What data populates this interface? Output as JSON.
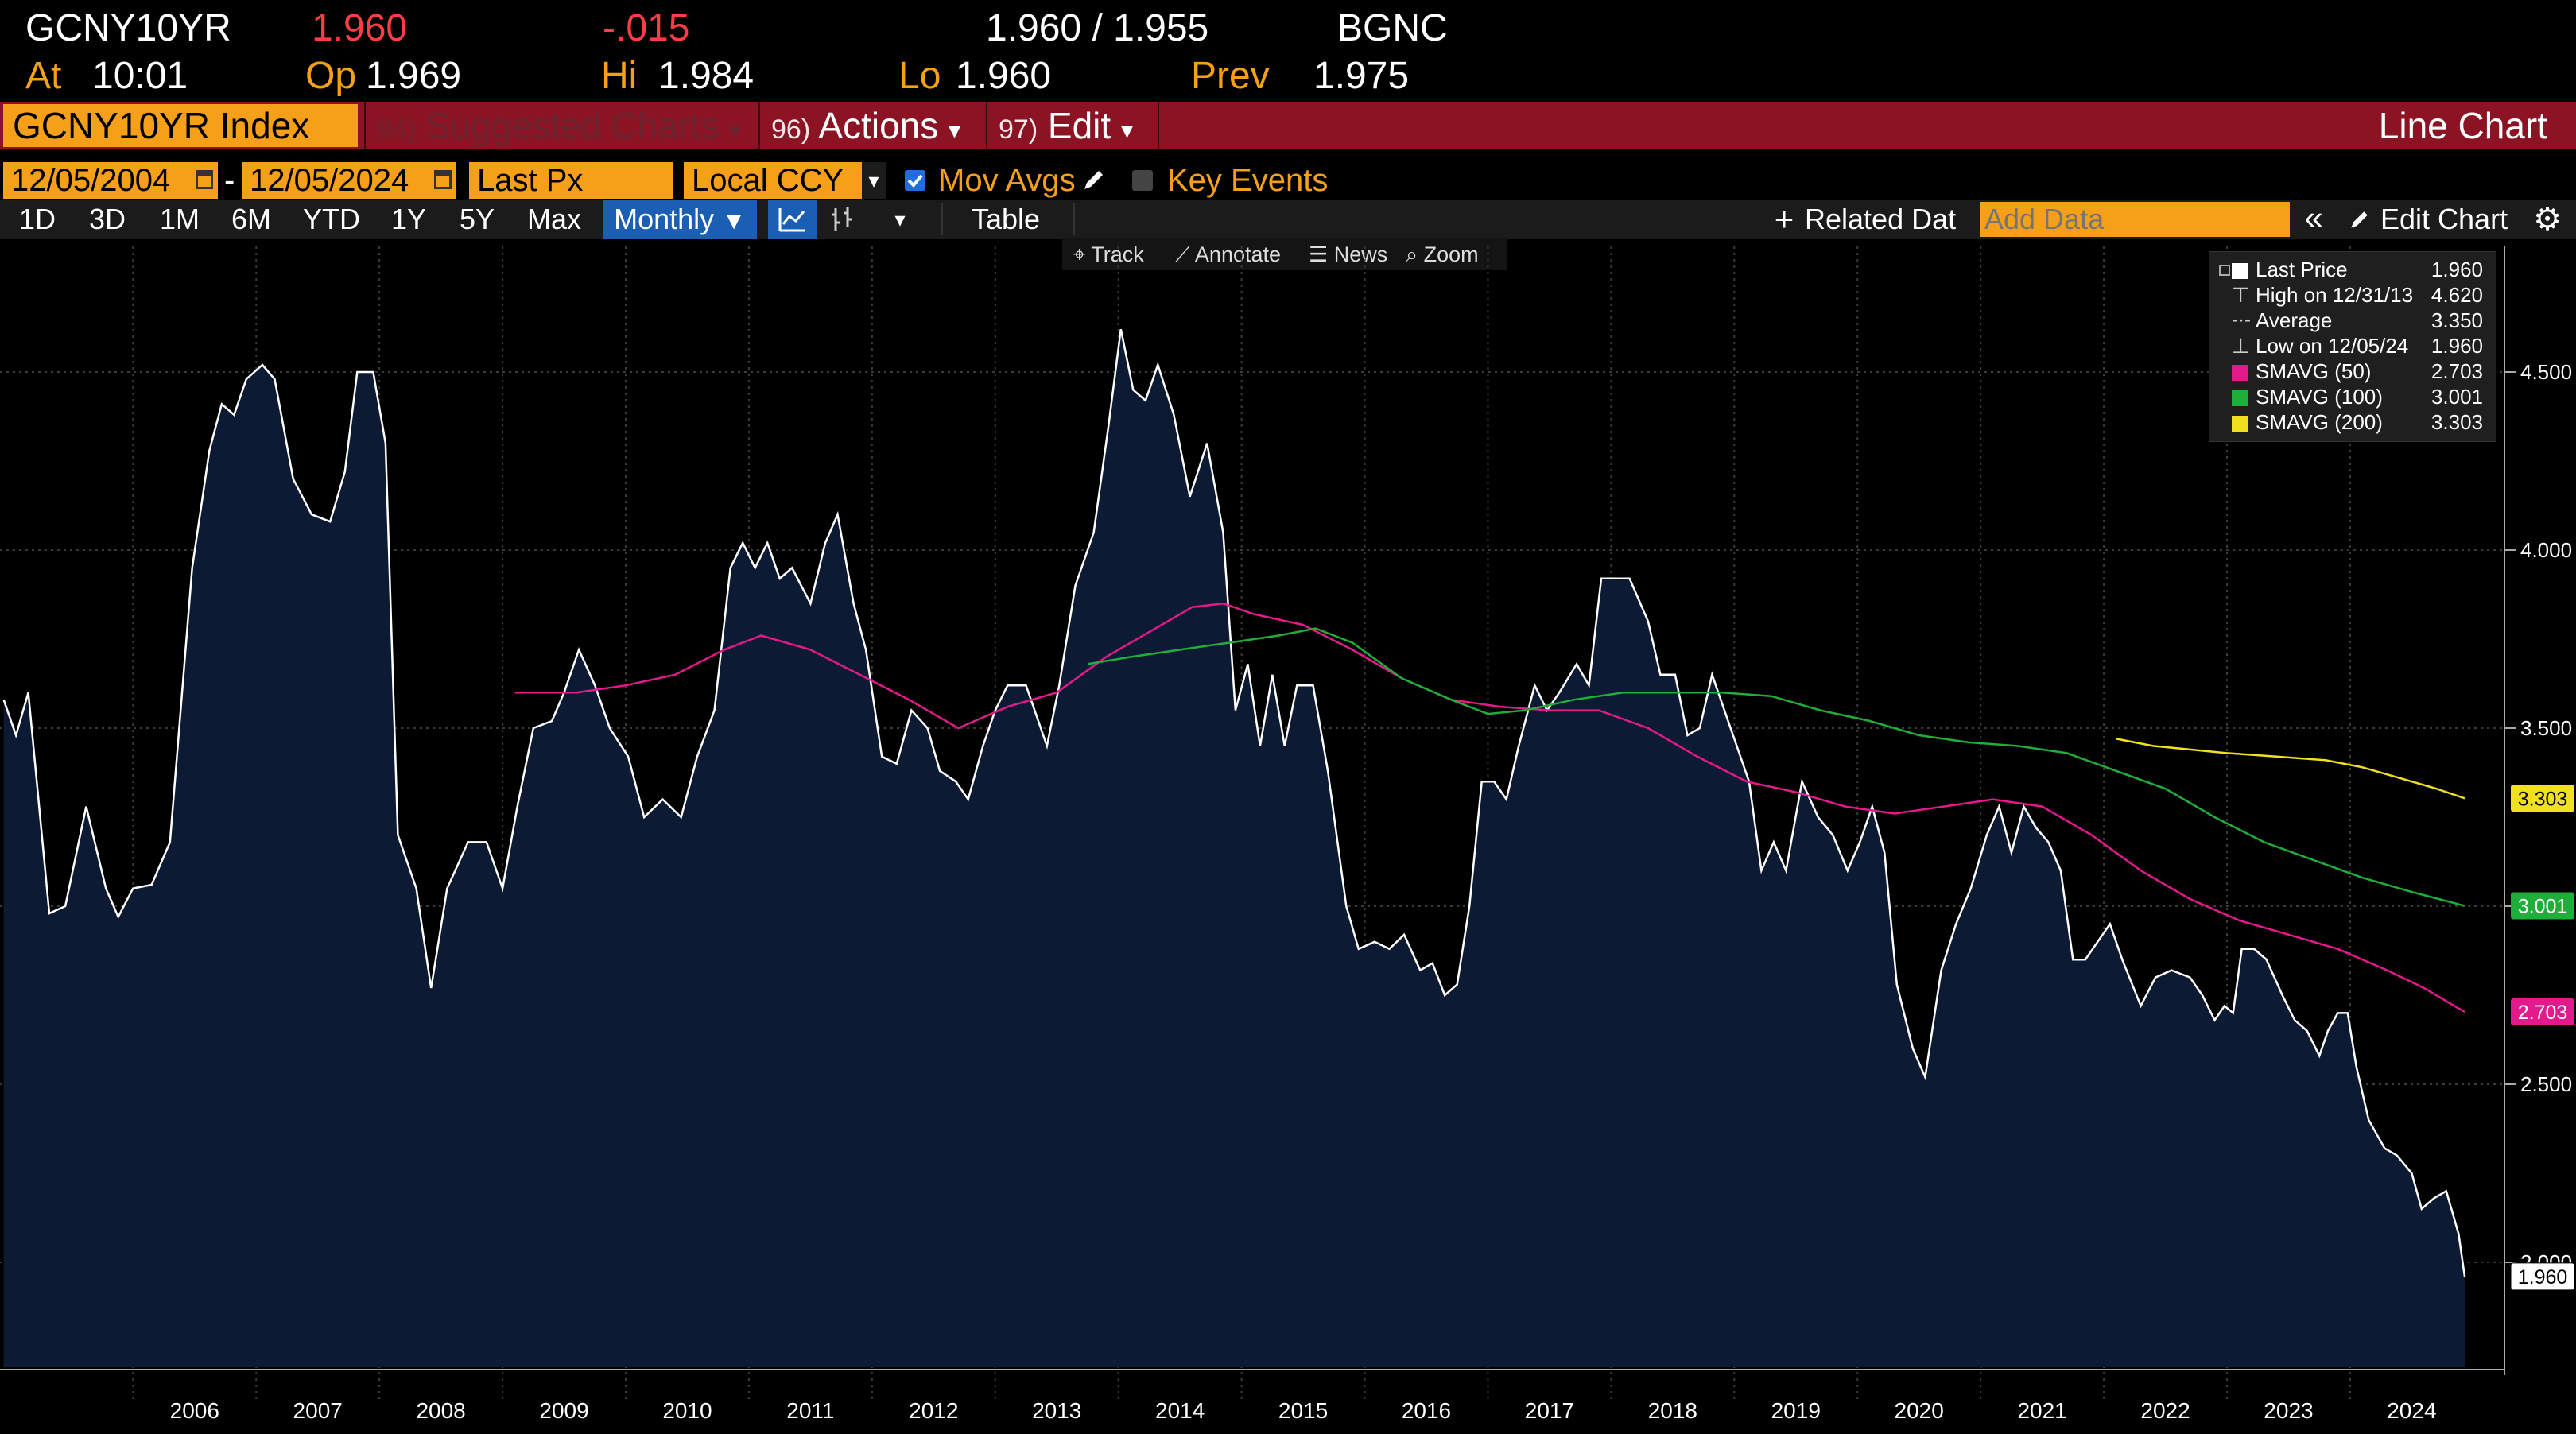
{
  "header": {
    "ticker": "GCNY10YR",
    "last": "1.960",
    "change": "-.015",
    "bid_ask": "1.960 / 1.955",
    "source": "BGNC",
    "at_label": "At",
    "at_time": "10:01",
    "open_label": "Op",
    "open_value": "1.969",
    "high_label": "Hi",
    "high_value": "1.984",
    "low_label": "Lo",
    "low_value": "1.960",
    "prev_label": "Prev",
    "prev_value": "1.975"
  },
  "menubar": {
    "security": "GCNY10YR Index",
    "suggested_num": "94)",
    "suggested_label": "Suggested Charts",
    "actions_num": "96)",
    "actions_label": "Actions",
    "edit_num": "97)",
    "edit_label": "Edit",
    "chart_type": "Line Chart",
    "dropdown_glyph": "▾"
  },
  "controls": {
    "start_date": "12/05/2004",
    "end_date": "12/05/2024",
    "date_dash": "-",
    "field": "Last Px",
    "currency": "Local CCY",
    "mov_avgs_label": "Mov Avgs",
    "mov_avgs_checked": true,
    "key_events_label": "Key Events",
    "key_events_checked": false
  },
  "toolbar": {
    "periods": [
      "1D",
      "3D",
      "1M",
      "6M",
      "YTD",
      "1Y",
      "5Y",
      "Max"
    ],
    "frequency": "Monthly",
    "table_label": "Table",
    "related_label": "Related Dat",
    "add_data_placeholder": "Add Data",
    "edit_chart_label": "Edit Chart"
  },
  "subtoolbar": {
    "track": "Track",
    "annotate": "Annotate",
    "news": "News",
    "zoom": "Zoom"
  },
  "legend": {
    "rows": [
      {
        "label": "Last Price",
        "value": "1.960",
        "color": "#ffffff"
      },
      {
        "label": "High on 12/31/13",
        "value": "4.620",
        "color": ""
      },
      {
        "label": "Average",
        "value": "3.350",
        "color": ""
      },
      {
        "label": "Low on 12/05/24",
        "value": "1.960",
        "color": ""
      },
      {
        "label": "SMAVG (50)",
        "value": "2.703",
        "color": "#e6198c"
      },
      {
        "label": "SMAVG (100)",
        "value": "3.001",
        "color": "#1fae3a"
      },
      {
        "label": "SMAVG (200)",
        "value": "3.303",
        "color": "#f0e020"
      }
    ]
  },
  "colors": {
    "amber": "#f6a01a",
    "menubar": "#8b1324",
    "area_fill": "#0d1a33",
    "sma50": "#e6198c",
    "sma100": "#1fae3a",
    "sma200": "#f0e020"
  },
  "chart_data": {
    "type": "area",
    "title": "",
    "xlabel": "",
    "ylabel": "",
    "ylim": [
      1.7,
      4.7
    ],
    "yticks": [
      "2.000",
      "2.500",
      "3.000",
      "3.500",
      "4.000",
      "4.500"
    ],
    "xlim": [
      2004.92,
      2024.93
    ],
    "year_labels": [
      "2006",
      "2007",
      "2008",
      "2009",
      "2010",
      "2011",
      "2012",
      "2013",
      "2014",
      "2015",
      "2016",
      "2017",
      "2018",
      "2019",
      "2020",
      "2021",
      "2022",
      "2023",
      "2024"
    ],
    "grid": true,
    "last_flags": [
      {
        "label": "3.303",
        "value": 3.303,
        "series": "SMAVG (200)"
      },
      {
        "label": "3.001",
        "value": 3.001,
        "series": "SMAVG (100)"
      },
      {
        "label": "2.703",
        "value": 2.703,
        "series": "SMAVG (50)"
      },
      {
        "label": "1.960",
        "value": 1.96,
        "series": "Last Price"
      }
    ],
    "series": [
      {
        "name": "Last Price",
        "style": "area",
        "points": [
          [
            2004.95,
            3.58
          ],
          [
            2005.05,
            3.48
          ],
          [
            2005.15,
            3.6
          ],
          [
            2005.32,
            2.98
          ],
          [
            2005.45,
            3.0
          ],
          [
            2005.62,
            3.28
          ],
          [
            2005.78,
            3.05
          ],
          [
            2005.88,
            2.97
          ],
          [
            2006.0,
            3.05
          ],
          [
            2006.15,
            3.06
          ],
          [
            2006.3,
            3.18
          ],
          [
            2006.48,
            3.95
          ],
          [
            2006.62,
            4.28
          ],
          [
            2006.72,
            4.41
          ],
          [
            2006.82,
            4.38
          ],
          [
            2006.92,
            4.48
          ],
          [
            2007.05,
            4.52
          ],
          [
            2007.15,
            4.48
          ],
          [
            2007.3,
            4.2
          ],
          [
            2007.45,
            4.1
          ],
          [
            2007.6,
            4.08
          ],
          [
            2007.72,
            4.22
          ],
          [
            2007.82,
            4.5
          ],
          [
            2007.95,
            4.5
          ],
          [
            2008.05,
            4.3
          ],
          [
            2008.15,
            3.2
          ],
          [
            2008.3,
            3.05
          ],
          [
            2008.42,
            2.77
          ],
          [
            2008.55,
            3.05
          ],
          [
            2008.72,
            3.18
          ],
          [
            2008.87,
            3.18
          ],
          [
            2009.0,
            3.05
          ],
          [
            2009.12,
            3.28
          ],
          [
            2009.25,
            3.5
          ],
          [
            2009.4,
            3.52
          ],
          [
            2009.5,
            3.6
          ],
          [
            2009.62,
            3.72
          ],
          [
            2009.75,
            3.62
          ],
          [
            2009.87,
            3.5
          ],
          [
            2010.02,
            3.42
          ],
          [
            2010.15,
            3.25
          ],
          [
            2010.3,
            3.3
          ],
          [
            2010.45,
            3.25
          ],
          [
            2010.58,
            3.42
          ],
          [
            2010.72,
            3.55
          ],
          [
            2010.85,
            3.95
          ],
          [
            2010.95,
            4.02
          ],
          [
            2011.05,
            3.95
          ],
          [
            2011.15,
            4.02
          ],
          [
            2011.25,
            3.92
          ],
          [
            2011.35,
            3.95
          ],
          [
            2011.5,
            3.85
          ],
          [
            2011.62,
            4.02
          ],
          [
            2011.72,
            4.1
          ],
          [
            2011.85,
            3.85
          ],
          [
            2011.95,
            3.72
          ],
          [
            2012.08,
            3.42
          ],
          [
            2012.2,
            3.4
          ],
          [
            2012.32,
            3.55
          ],
          [
            2012.45,
            3.5
          ],
          [
            2012.55,
            3.38
          ],
          [
            2012.68,
            3.35
          ],
          [
            2012.78,
            3.3
          ],
          [
            2012.9,
            3.45
          ],
          [
            2013.0,
            3.55
          ],
          [
            2013.1,
            3.62
          ],
          [
            2013.25,
            3.62
          ],
          [
            2013.42,
            3.45
          ],
          [
            2013.52,
            3.62
          ],
          [
            2013.65,
            3.9
          ],
          [
            2013.8,
            4.05
          ],
          [
            2013.92,
            4.35
          ],
          [
            2014.02,
            4.62
          ],
          [
            2014.12,
            4.45
          ],
          [
            2014.22,
            4.42
          ],
          [
            2014.32,
            4.52
          ],
          [
            2014.45,
            4.38
          ],
          [
            2014.58,
            4.15
          ],
          [
            2014.72,
            4.3
          ],
          [
            2014.85,
            4.05
          ],
          [
            2014.95,
            3.55
          ],
          [
            2015.05,
            3.68
          ],
          [
            2015.15,
            3.45
          ],
          [
            2015.25,
            3.65
          ],
          [
            2015.35,
            3.45
          ],
          [
            2015.45,
            3.62
          ],
          [
            2015.58,
            3.62
          ],
          [
            2015.7,
            3.38
          ],
          [
            2015.85,
            3.0
          ],
          [
            2015.95,
            2.88
          ],
          [
            2016.08,
            2.9
          ],
          [
            2016.2,
            2.88
          ],
          [
            2016.32,
            2.92
          ],
          [
            2016.45,
            2.82
          ],
          [
            2016.55,
            2.84
          ],
          [
            2016.65,
            2.75
          ],
          [
            2016.75,
            2.78
          ],
          [
            2016.85,
            3.0
          ],
          [
            2016.95,
            3.35
          ],
          [
            2017.05,
            3.35
          ],
          [
            2017.15,
            3.3
          ],
          [
            2017.25,
            3.45
          ],
          [
            2017.38,
            3.62
          ],
          [
            2017.48,
            3.55
          ],
          [
            2017.58,
            3.6
          ],
          [
            2017.72,
            3.68
          ],
          [
            2017.82,
            3.62
          ],
          [
            2017.92,
            3.92
          ],
          [
            2018.05,
            3.92
          ],
          [
            2018.15,
            3.92
          ],
          [
            2018.3,
            3.8
          ],
          [
            2018.4,
            3.65
          ],
          [
            2018.52,
            3.65
          ],
          [
            2018.62,
            3.48
          ],
          [
            2018.72,
            3.5
          ],
          [
            2018.82,
            3.65
          ],
          [
            2018.92,
            3.55
          ],
          [
            2019.02,
            3.45
          ],
          [
            2019.12,
            3.35
          ],
          [
            2019.22,
            3.1
          ],
          [
            2019.32,
            3.18
          ],
          [
            2019.42,
            3.1
          ],
          [
            2019.55,
            3.35
          ],
          [
            2019.68,
            3.25
          ],
          [
            2019.8,
            3.2
          ],
          [
            2019.92,
            3.1
          ],
          [
            2020.02,
            3.18
          ],
          [
            2020.12,
            3.28
          ],
          [
            2020.22,
            3.15
          ],
          [
            2020.32,
            2.78
          ],
          [
            2020.45,
            2.6
          ],
          [
            2020.55,
            2.52
          ],
          [
            2020.68,
            2.82
          ],
          [
            2020.8,
            2.95
          ],
          [
            2020.92,
            3.05
          ],
          [
            2021.05,
            3.2
          ],
          [
            2021.15,
            3.28
          ],
          [
            2021.25,
            3.15
          ],
          [
            2021.35,
            3.28
          ],
          [
            2021.45,
            3.22
          ],
          [
            2021.55,
            3.18
          ],
          [
            2021.65,
            3.1
          ],
          [
            2021.75,
            2.85
          ],
          [
            2021.85,
            2.85
          ],
          [
            2021.95,
            2.9
          ],
          [
            2022.05,
            2.95
          ],
          [
            2022.15,
            2.85
          ],
          [
            2022.3,
            2.72
          ],
          [
            2022.42,
            2.8
          ],
          [
            2022.55,
            2.82
          ],
          [
            2022.7,
            2.8
          ],
          [
            2022.8,
            2.75
          ],
          [
            2022.9,
            2.68
          ],
          [
            2022.98,
            2.72
          ],
          [
            2023.05,
            2.7
          ],
          [
            2023.12,
            2.88
          ],
          [
            2023.22,
            2.88
          ],
          [
            2023.32,
            2.85
          ],
          [
            2023.45,
            2.75
          ],
          [
            2023.55,
            2.68
          ],
          [
            2023.65,
            2.65
          ],
          [
            2023.75,
            2.58
          ],
          [
            2023.82,
            2.65
          ],
          [
            2023.9,
            2.7
          ],
          [
            2023.98,
            2.7
          ],
          [
            2024.05,
            2.55
          ],
          [
            2024.15,
            2.4
          ],
          [
            2024.28,
            2.32
          ],
          [
            2024.38,
            2.3
          ],
          [
            2024.5,
            2.25
          ],
          [
            2024.58,
            2.15
          ],
          [
            2024.68,
            2.18
          ],
          [
            2024.78,
            2.2
          ],
          [
            2024.88,
            2.08
          ],
          [
            2024.93,
            1.96
          ]
        ]
      },
      {
        "name": "SMAVG (50)",
        "style": "line",
        "points": [
          [
            2009.1,
            3.6
          ],
          [
            2009.6,
            3.6
          ],
          [
            2010.0,
            3.62
          ],
          [
            2010.4,
            3.65
          ],
          [
            2010.8,
            3.72
          ],
          [
            2011.1,
            3.76
          ],
          [
            2011.5,
            3.72
          ],
          [
            2011.9,
            3.65
          ],
          [
            2012.3,
            3.58
          ],
          [
            2012.7,
            3.5
          ],
          [
            2013.1,
            3.56
          ],
          [
            2013.5,
            3.6
          ],
          [
            2013.9,
            3.7
          ],
          [
            2014.3,
            3.78
          ],
          [
            2014.6,
            3.84
          ],
          [
            2014.85,
            3.85
          ],
          [
            2015.1,
            3.82
          ],
          [
            2015.5,
            3.79
          ],
          [
            2015.9,
            3.72
          ],
          [
            2016.3,
            3.64
          ],
          [
            2016.7,
            3.58
          ],
          [
            2017.1,
            3.56
          ],
          [
            2017.5,
            3.55
          ],
          [
            2017.9,
            3.55
          ],
          [
            2018.3,
            3.5
          ],
          [
            2018.7,
            3.42
          ],
          [
            2019.1,
            3.35
          ],
          [
            2019.5,
            3.32
          ],
          [
            2019.9,
            3.28
          ],
          [
            2020.3,
            3.26
          ],
          [
            2020.7,
            3.28
          ],
          [
            2021.1,
            3.3
          ],
          [
            2021.5,
            3.28
          ],
          [
            2021.9,
            3.2
          ],
          [
            2022.3,
            3.1
          ],
          [
            2022.7,
            3.02
          ],
          [
            2023.1,
            2.96
          ],
          [
            2023.5,
            2.92
          ],
          [
            2023.9,
            2.88
          ],
          [
            2024.3,
            2.82
          ],
          [
            2024.6,
            2.77
          ],
          [
            2024.93,
            2.703
          ]
        ]
      },
      {
        "name": "SMAVG (100)",
        "style": "line",
        "points": [
          [
            2013.75,
            3.68
          ],
          [
            2014.1,
            3.7
          ],
          [
            2014.5,
            3.72
          ],
          [
            2014.9,
            3.74
          ],
          [
            2015.3,
            3.76
          ],
          [
            2015.6,
            3.78
          ],
          [
            2015.9,
            3.74
          ],
          [
            2016.3,
            3.64
          ],
          [
            2016.7,
            3.58
          ],
          [
            2017.0,
            3.54
          ],
          [
            2017.3,
            3.55
          ],
          [
            2017.7,
            3.58
          ],
          [
            2018.1,
            3.6
          ],
          [
            2018.5,
            3.6
          ],
          [
            2018.9,
            3.6
          ],
          [
            2019.3,
            3.59
          ],
          [
            2019.7,
            3.55
          ],
          [
            2020.1,
            3.52
          ],
          [
            2020.5,
            3.48
          ],
          [
            2020.9,
            3.46
          ],
          [
            2021.3,
            3.45
          ],
          [
            2021.7,
            3.43
          ],
          [
            2022.1,
            3.38
          ],
          [
            2022.5,
            3.33
          ],
          [
            2022.9,
            3.25
          ],
          [
            2023.3,
            3.18
          ],
          [
            2023.7,
            3.13
          ],
          [
            2024.1,
            3.08
          ],
          [
            2024.5,
            3.04
          ],
          [
            2024.93,
            3.001
          ]
        ]
      },
      {
        "name": "SMAVG (200)",
        "style": "line",
        "points": [
          [
            2022.1,
            3.47
          ],
          [
            2022.4,
            3.45
          ],
          [
            2022.7,
            3.44
          ],
          [
            2023.0,
            3.43
          ],
          [
            2023.4,
            3.42
          ],
          [
            2023.8,
            3.41
          ],
          [
            2024.1,
            3.39
          ],
          [
            2024.4,
            3.36
          ],
          [
            2024.7,
            3.33
          ],
          [
            2024.93,
            3.303
          ]
        ]
      }
    ]
  }
}
